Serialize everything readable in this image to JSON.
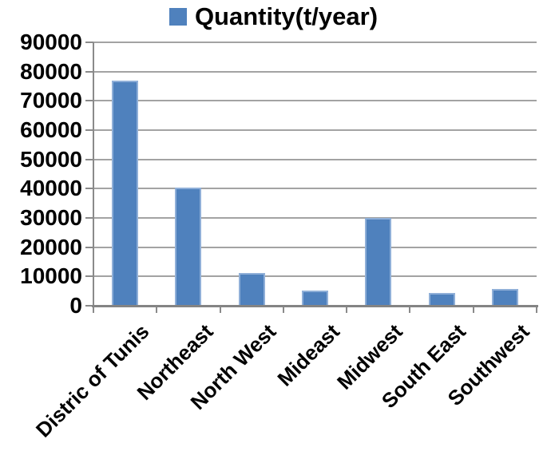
{
  "legend": {
    "label": "Quantity(t/year)"
  },
  "chart_data": {
    "type": "bar",
    "title": "Quantity(t/year)",
    "series_name": "Quantity(t/year)",
    "categories": [
      "Distric of Tunis",
      "Northeast",
      "North West",
      "Mideast",
      "Midwest",
      "South East",
      "Southwest"
    ],
    "values": [
      77000,
      40300,
      11200,
      5300,
      30000,
      4500,
      5800
    ],
    "xlabel": "",
    "ylabel": "",
    "ylim": [
      0,
      90000
    ],
    "ytick_step": 10000,
    "ytick_labels": [
      "0",
      "10000",
      "20000",
      "30000",
      "40000",
      "50000",
      "60000",
      "70000",
      "80000",
      "90000"
    ],
    "grid": "horizontal",
    "legend_position": "top",
    "bar_color": "#4f81bd",
    "bar_border_color": "#8fafd8",
    "gridline_color": "#a3a3a3",
    "axis_color": "#8a8a8a",
    "label_color": "#000000"
  }
}
